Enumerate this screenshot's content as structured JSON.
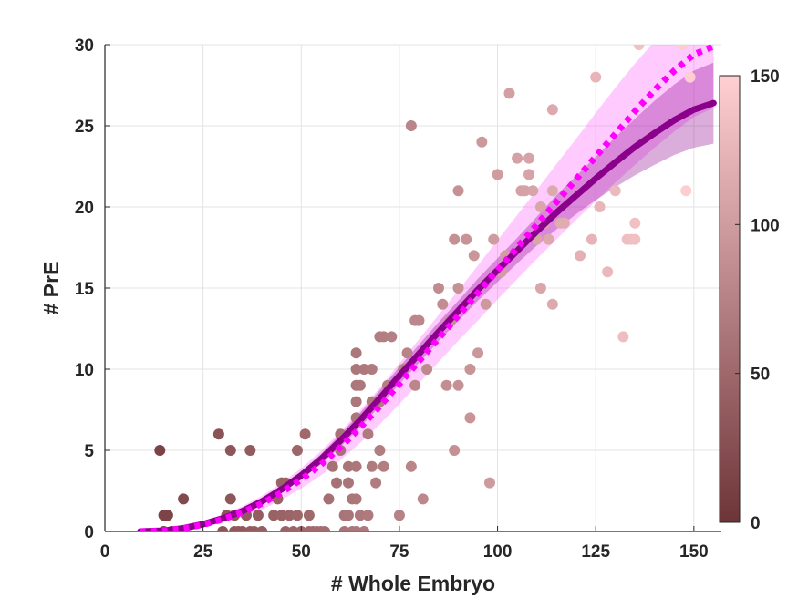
{
  "chart_data": {
    "type": "scatter",
    "title": "",
    "xlabel": "# Whole Embryo",
    "ylabel": "# PrE",
    "xlim": [
      0,
      157
    ],
    "ylim": [
      0,
      30
    ],
    "xticks": [
      0,
      25,
      50,
      75,
      100,
      125,
      150
    ],
    "yticks": [
      0,
      5,
      10,
      15,
      20,
      25,
      30
    ],
    "grid": true,
    "colorbar": {
      "range": [
        0,
        150
      ],
      "ticks": [
        0,
        50,
        100,
        150
      ],
      "color_low": "#6e3538",
      "color_high": "#ffcfd2"
    },
    "series": [
      {
        "kind": "scatter",
        "color_by": "x",
        "points": [
          [
            14,
            5
          ],
          [
            15,
            0
          ],
          [
            16,
            1
          ],
          [
            17,
            0
          ],
          [
            15,
            1
          ],
          [
            20,
            2
          ],
          [
            29,
            6
          ],
          [
            30,
            0
          ],
          [
            31,
            1
          ],
          [
            32,
            5
          ],
          [
            32,
            2
          ],
          [
            33,
            0
          ],
          [
            33,
            1
          ],
          [
            34,
            0
          ],
          [
            35,
            0
          ],
          [
            36,
            1
          ],
          [
            37,
            5
          ],
          [
            37,
            0
          ],
          [
            38,
            0
          ],
          [
            39,
            1
          ],
          [
            40,
            0
          ],
          [
            43,
            1
          ],
          [
            44,
            2
          ],
          [
            45,
            1
          ],
          [
            45,
            3
          ],
          [
            46,
            0
          ],
          [
            46,
            3
          ],
          [
            47,
            1
          ],
          [
            48,
            0
          ],
          [
            49,
            5
          ],
          [
            49,
            1
          ],
          [
            50,
            0
          ],
          [
            51,
            6
          ],
          [
            52,
            0
          ],
          [
            52,
            1
          ],
          [
            53,
            0
          ],
          [
            54,
            0
          ],
          [
            55,
            0
          ],
          [
            56,
            0
          ],
          [
            57,
            2
          ],
          [
            58,
            4
          ],
          [
            59,
            3
          ],
          [
            60,
            5
          ],
          [
            60,
            6
          ],
          [
            61,
            1
          ],
          [
            61,
            0
          ],
          [
            62,
            4
          ],
          [
            62,
            3
          ],
          [
            62,
            1
          ],
          [
            63,
            2
          ],
          [
            63,
            0
          ],
          [
            64,
            2
          ],
          [
            64,
            4
          ],
          [
            64,
            7
          ],
          [
            64,
            8
          ],
          [
            64,
            9
          ],
          [
            64,
            10
          ],
          [
            64,
            11
          ],
          [
            64,
            0
          ],
          [
            65,
            9
          ],
          [
            65,
            1
          ],
          [
            66,
            10
          ],
          [
            66,
            0
          ],
          [
            67,
            6
          ],
          [
            67,
            1
          ],
          [
            68,
            10
          ],
          [
            68,
            8
          ],
          [
            68,
            4
          ],
          [
            69,
            3
          ],
          [
            70,
            5
          ],
          [
            70,
            12
          ],
          [
            70,
            8
          ],
          [
            71,
            12
          ],
          [
            71,
            4
          ],
          [
            72,
            9
          ],
          [
            73,
            12
          ],
          [
            75,
            1
          ],
          [
            76,
            10
          ],
          [
            77,
            11
          ],
          [
            78,
            4
          ],
          [
            78,
            25
          ],
          [
            79,
            13
          ],
          [
            79,
            9
          ],
          [
            80,
            13
          ],
          [
            81,
            2
          ],
          [
            82,
            10
          ],
          [
            85,
            15
          ],
          [
            86,
            14
          ],
          [
            87,
            9
          ],
          [
            88,
            13
          ],
          [
            89,
            18
          ],
          [
            89,
            5
          ],
          [
            90,
            15
          ],
          [
            90,
            21
          ],
          [
            90,
            9
          ],
          [
            92,
            18
          ],
          [
            93,
            7
          ],
          [
            93,
            10
          ],
          [
            94,
            17
          ],
          [
            95,
            11
          ],
          [
            96,
            24
          ],
          [
            97,
            14
          ],
          [
            98,
            3
          ],
          [
            99,
            18
          ],
          [
            100,
            22
          ],
          [
            101,
            16
          ],
          [
            102,
            17
          ],
          [
            103,
            27
          ],
          [
            105,
            23
          ],
          [
            106,
            21
          ],
          [
            107,
            21
          ],
          [
            108,
            23
          ],
          [
            108,
            22
          ],
          [
            109,
            21
          ],
          [
            110,
            18
          ],
          [
            111,
            15
          ],
          [
            111,
            20
          ],
          [
            112,
            19
          ],
          [
            113,
            18
          ],
          [
            114,
            26
          ],
          [
            114,
            21
          ],
          [
            114,
            14
          ],
          [
            116,
            19
          ],
          [
            117,
            19
          ],
          [
            121,
            17
          ],
          [
            124,
            18
          ],
          [
            125,
            28
          ],
          [
            126,
            20
          ],
          [
            128,
            16
          ],
          [
            130,
            21
          ],
          [
            132,
            12
          ],
          [
            133,
            18
          ],
          [
            134,
            18
          ],
          [
            135,
            19
          ],
          [
            135,
            18
          ],
          [
            136,
            30
          ],
          [
            147,
            30
          ],
          [
            148,
            21
          ],
          [
            149,
            28
          ]
        ]
      },
      {
        "kind": "line",
        "style": "solid",
        "color": "#8b008b",
        "band_color": "#8b008b",
        "points": [
          [
            9,
            0
          ],
          [
            15,
            0.05
          ],
          [
            20,
            0.2
          ],
          [
            25,
            0.45
          ],
          [
            30,
            0.8
          ],
          [
            35,
            1.25
          ],
          [
            40,
            1.85
          ],
          [
            45,
            2.6
          ],
          [
            50,
            3.45
          ],
          [
            55,
            4.45
          ],
          [
            60,
            5.6
          ],
          [
            65,
            6.85
          ],
          [
            70,
            8.2
          ],
          [
            75,
            9.6
          ],
          [
            80,
            10.95
          ],
          [
            85,
            12.3
          ],
          [
            90,
            13.6
          ],
          [
            95,
            14.9
          ],
          [
            100,
            16.1
          ],
          [
            105,
            17.3
          ],
          [
            110,
            18.5
          ],
          [
            115,
            19.65
          ],
          [
            120,
            20.7
          ],
          [
            125,
            21.75
          ],
          [
            130,
            22.75
          ],
          [
            135,
            23.7
          ],
          [
            140,
            24.55
          ],
          [
            145,
            25.35
          ],
          [
            150,
            26.0
          ],
          [
            155,
            26.4
          ]
        ],
        "band_lower": [
          [
            9,
            0
          ],
          [
            15,
            0.02
          ],
          [
            20,
            0.15
          ],
          [
            25,
            0.38
          ],
          [
            30,
            0.7
          ],
          [
            35,
            1.12
          ],
          [
            40,
            1.68
          ],
          [
            45,
            2.38
          ],
          [
            50,
            3.2
          ],
          [
            55,
            4.15
          ],
          [
            60,
            5.22
          ],
          [
            65,
            6.42
          ],
          [
            70,
            7.72
          ],
          [
            75,
            9.08
          ],
          [
            80,
            10.4
          ],
          [
            85,
            11.72
          ],
          [
            90,
            12.98
          ],
          [
            95,
            14.22
          ],
          [
            100,
            15.38
          ],
          [
            105,
            16.52
          ],
          [
            110,
            17.62
          ],
          [
            115,
            18.62
          ],
          [
            120,
            19.55
          ],
          [
            125,
            20.42
          ],
          [
            130,
            21.22
          ],
          [
            135,
            21.95
          ],
          [
            140,
            22.6
          ],
          [
            145,
            23.2
          ],
          [
            150,
            23.65
          ],
          [
            155,
            23.9
          ]
        ],
        "band_upper": [
          [
            9,
            0
          ],
          [
            15,
            0.08
          ],
          [
            20,
            0.26
          ],
          [
            25,
            0.53
          ],
          [
            30,
            0.92
          ],
          [
            35,
            1.4
          ],
          [
            40,
            2.05
          ],
          [
            45,
            2.84
          ],
          [
            50,
            3.72
          ],
          [
            55,
            4.77
          ],
          [
            60,
            6.0
          ],
          [
            65,
            7.3
          ],
          [
            70,
            8.7
          ],
          [
            75,
            10.14
          ],
          [
            80,
            11.52
          ],
          [
            85,
            12.9
          ],
          [
            90,
            14.22
          ],
          [
            95,
            15.58
          ],
          [
            100,
            16.84
          ],
          [
            105,
            18.1
          ],
          [
            110,
            19.4
          ],
          [
            115,
            20.72
          ],
          [
            120,
            21.9
          ],
          [
            125,
            23.1
          ],
          [
            130,
            24.3
          ],
          [
            135,
            25.45
          ],
          [
            140,
            26.55
          ],
          [
            145,
            27.55
          ],
          [
            150,
            28.4
          ],
          [
            155,
            28.9
          ]
        ]
      },
      {
        "kind": "line",
        "style": "dotted",
        "color": "#ff00ff",
        "band_color": "#ff44ff",
        "points": [
          [
            9,
            0
          ],
          [
            15,
            0.05
          ],
          [
            20,
            0.18
          ],
          [
            25,
            0.42
          ],
          [
            30,
            0.75
          ],
          [
            35,
            1.18
          ],
          [
            40,
            1.72
          ],
          [
            45,
            2.4
          ],
          [
            50,
            3.2
          ],
          [
            55,
            4.12
          ],
          [
            60,
            5.2
          ],
          [
            65,
            6.4
          ],
          [
            70,
            7.72
          ],
          [
            75,
            9.1
          ],
          [
            80,
            10.5
          ],
          [
            85,
            11.9
          ],
          [
            90,
            13.3
          ],
          [
            95,
            14.7
          ],
          [
            100,
            16.1
          ],
          [
            105,
            17.5
          ],
          [
            110,
            18.9
          ],
          [
            115,
            20.3
          ],
          [
            120,
            21.7
          ],
          [
            125,
            23.1
          ],
          [
            130,
            24.5
          ],
          [
            135,
            25.9
          ],
          [
            140,
            27.2
          ],
          [
            145,
            28.4
          ],
          [
            150,
            29.4
          ],
          [
            155,
            29.9
          ]
        ],
        "band_lower": [
          [
            9,
            0
          ],
          [
            15,
            0
          ],
          [
            20,
            0.08
          ],
          [
            25,
            0.25
          ],
          [
            30,
            0.55
          ],
          [
            35,
            0.9
          ],
          [
            40,
            1.35
          ],
          [
            45,
            1.95
          ],
          [
            50,
            2.65
          ],
          [
            55,
            3.45
          ],
          [
            60,
            4.4
          ],
          [
            65,
            5.45
          ],
          [
            70,
            6.6
          ],
          [
            75,
            7.85
          ],
          [
            80,
            9.15
          ],
          [
            85,
            10.45
          ],
          [
            90,
            11.75
          ],
          [
            95,
            13.0
          ],
          [
            100,
            14.3
          ],
          [
            105,
            15.55
          ],
          [
            110,
            16.8
          ],
          [
            115,
            18.0
          ],
          [
            120,
            19.2
          ],
          [
            125,
            20.35
          ],
          [
            130,
            21.5
          ],
          [
            135,
            22.6
          ],
          [
            140,
            23.65
          ],
          [
            145,
            24.65
          ],
          [
            150,
            25.55
          ],
          [
            155,
            26.1
          ]
        ],
        "band_upper": [
          [
            9,
            0
          ],
          [
            15,
            0.15
          ],
          [
            20,
            0.35
          ],
          [
            25,
            0.65
          ],
          [
            30,
            1.05
          ],
          [
            35,
            1.55
          ],
          [
            40,
            2.2
          ],
          [
            45,
            3.0
          ],
          [
            50,
            3.9
          ],
          [
            55,
            4.95
          ],
          [
            60,
            6.15
          ],
          [
            65,
            7.45
          ],
          [
            70,
            8.85
          ],
          [
            75,
            10.35
          ],
          [
            80,
            11.85
          ],
          [
            85,
            13.35
          ],
          [
            90,
            14.85
          ],
          [
            95,
            16.4
          ],
          [
            100,
            17.95
          ],
          [
            105,
            19.5
          ],
          [
            110,
            21.05
          ],
          [
            115,
            22.65
          ],
          [
            120,
            24.2
          ],
          [
            125,
            25.8
          ],
          [
            130,
            27.35
          ],
          [
            135,
            28.85
          ],
          [
            140,
            30.2
          ],
          [
            145,
            31.3
          ],
          [
            150,
            32.1
          ],
          [
            155,
            32.5
          ]
        ]
      }
    ]
  }
}
